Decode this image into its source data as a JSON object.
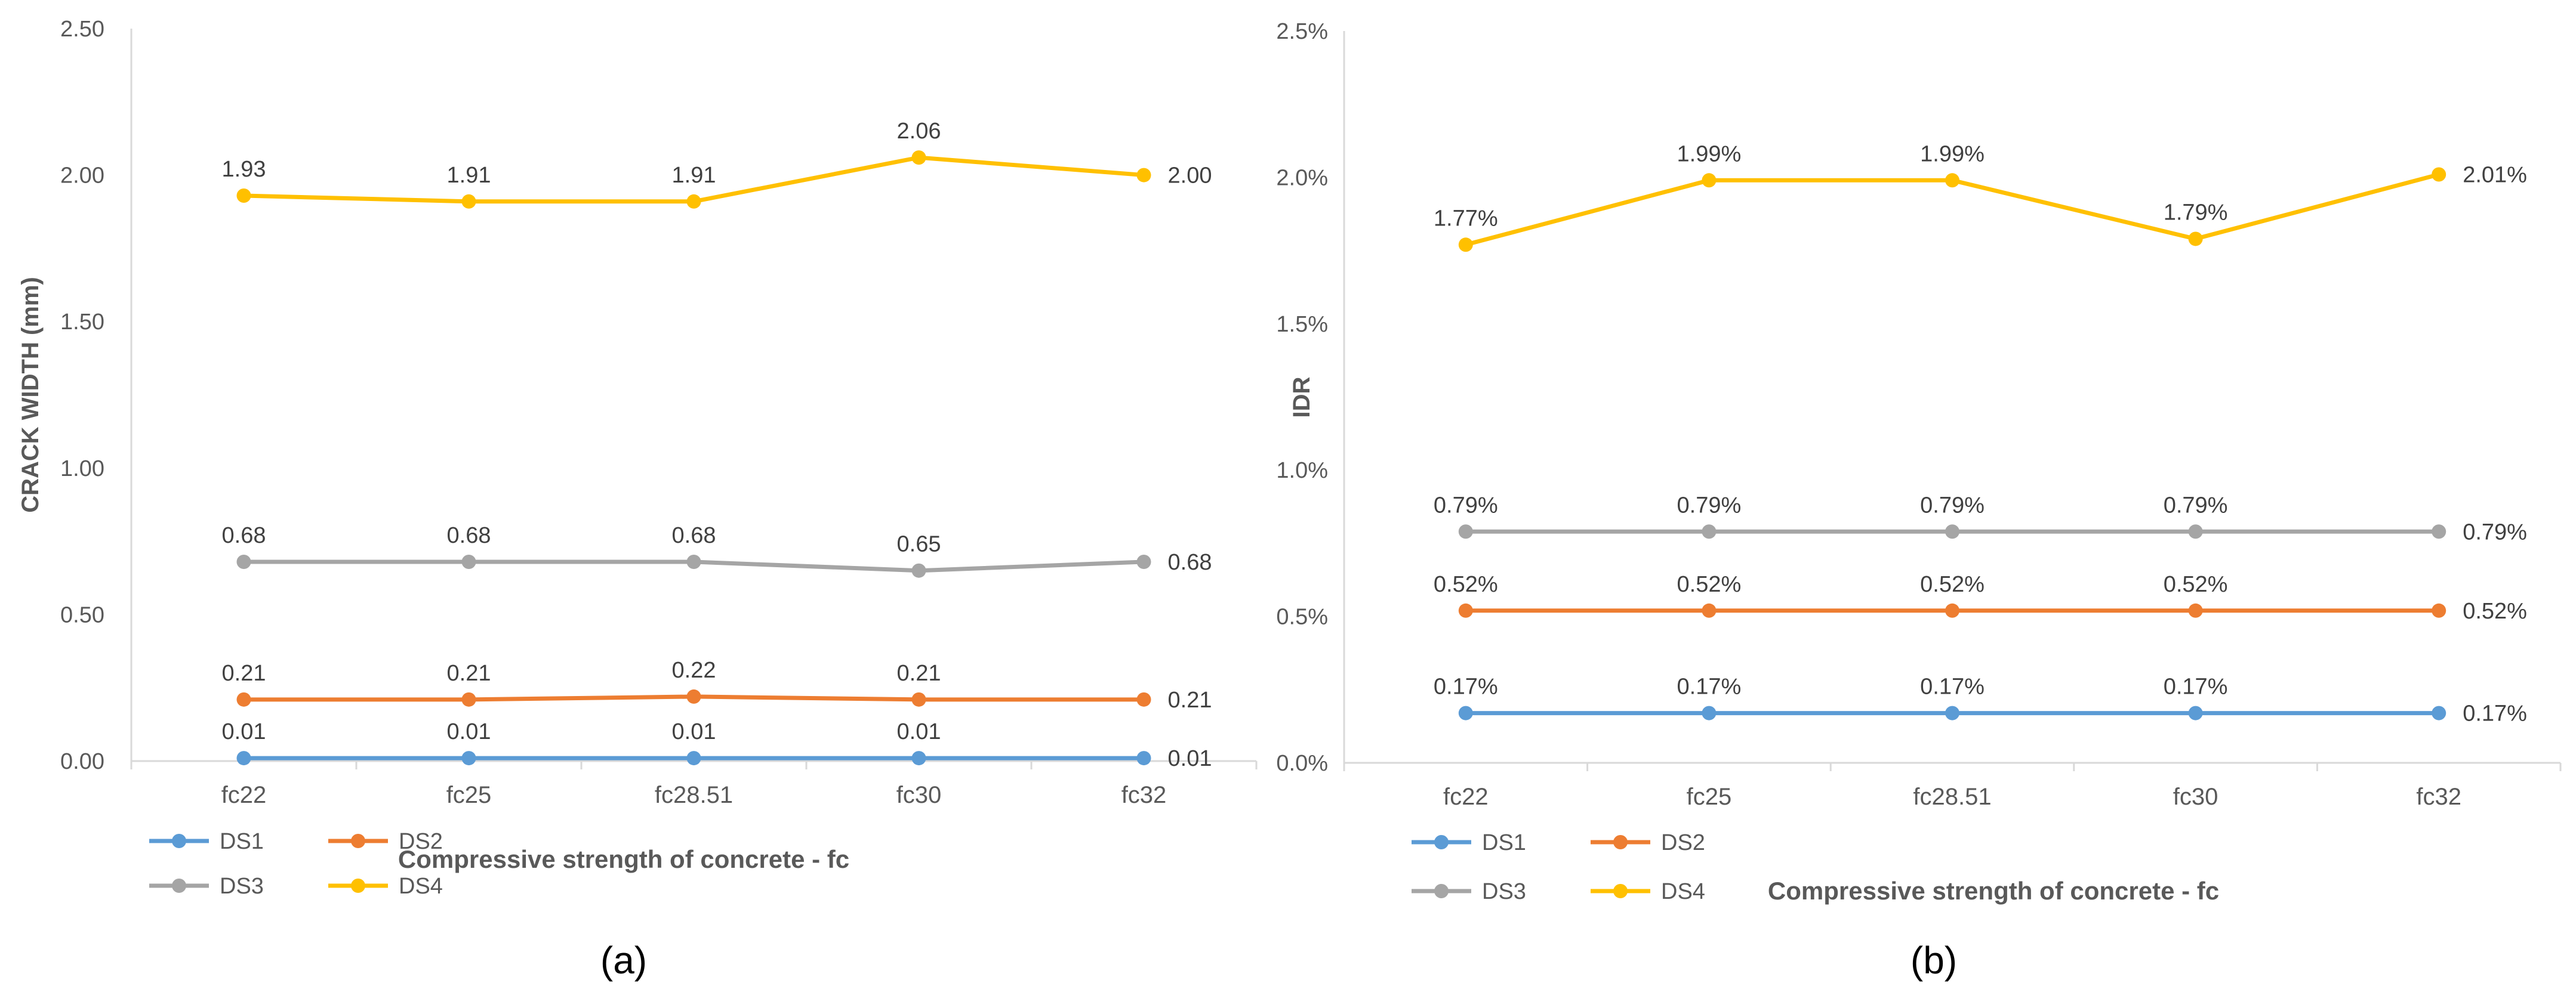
{
  "panels": [
    {
      "caption": "(a)",
      "chart_data": {
        "type": "line",
        "categories": [
          "fc22",
          "fc25",
          "fc28.51",
          "fc30",
          "fc32"
        ],
        "series": [
          {
            "name": "DS1",
            "values": [
              0.01,
              0.01,
              0.01,
              0.01,
              0.01
            ],
            "labels": [
              "0.01",
              "0.01",
              "0.01",
              "0.01",
              "0.01"
            ],
            "color": "#5B9BD5"
          },
          {
            "name": "DS2",
            "values": [
              0.21,
              0.21,
              0.22,
              0.21,
              0.21
            ],
            "labels": [
              "0.21",
              "0.21",
              "0.22",
              "0.21",
              "0.21"
            ],
            "color": "#ED7D31"
          },
          {
            "name": "DS3",
            "values": [
              0.68,
              0.68,
              0.68,
              0.65,
              0.68
            ],
            "labels": [
              "0.68",
              "0.68",
              "0.68",
              "0.65",
              "0.68"
            ],
            "color": "#A5A5A5"
          },
          {
            "name": "DS4",
            "values": [
              1.93,
              1.91,
              1.91,
              2.06,
              2.0
            ],
            "labels": [
              "1.93",
              "1.91",
              "1.91",
              "2.06",
              "2.00"
            ],
            "color": "#FFC000"
          }
        ],
        "xlabel": "Compressive strength of concrete - fc",
        "ylabel": "CRACK WIDTH (mm)",
        "ylim": [
          0,
          2.5
        ],
        "yticks": [
          0,
          0.5,
          1.0,
          1.5,
          2.0,
          2.5
        ],
        "ytick_labels": [
          "0.00",
          "0.50",
          "1.00",
          "1.50",
          "2.00",
          "2.50"
        ],
        "legend": "bottom-left",
        "grid": false
      }
    },
    {
      "caption": "(b)",
      "chart_data": {
        "type": "line",
        "categories": [
          "fc22",
          "fc25",
          "fc28.51",
          "fc30",
          "fc32"
        ],
        "series": [
          {
            "name": "DS1",
            "values": [
              0.17,
              0.17,
              0.17,
              0.17,
              0.17
            ],
            "labels": [
              "0.17%",
              "0.17%",
              "0.17%",
              "0.17%",
              "0.17%"
            ],
            "color": "#5B9BD5"
          },
          {
            "name": "DS2",
            "values": [
              0.52,
              0.52,
              0.52,
              0.52,
              0.52
            ],
            "labels": [
              "0.52%",
              "0.52%",
              "0.52%",
              "0.52%",
              "0.52%"
            ],
            "color": "#ED7D31"
          },
          {
            "name": "DS3",
            "values": [
              0.79,
              0.79,
              0.79,
              0.79,
              0.79
            ],
            "labels": [
              "0.79%",
              "0.79%",
              "0.79%",
              "0.79%",
              "0.79%"
            ],
            "color": "#A5A5A5"
          },
          {
            "name": "DS4",
            "values": [
              1.77,
              1.99,
              1.99,
              1.79,
              2.01
            ],
            "labels": [
              "1.77%",
              "1.99%",
              "1.99%",
              "1.79%",
              "2.01%"
            ],
            "color": "#FFC000"
          }
        ],
        "xlabel": "Compressive strength of concrete - fc",
        "ylabel": "IDR",
        "ylim": [
          0,
          2.5
        ],
        "yticks": [
          0,
          0.5,
          1.0,
          1.5,
          2.0,
          2.5
        ],
        "ytick_labels": [
          "0.0%",
          "0.5%",
          "1.0%",
          "1.5%",
          "2.0%",
          "2.5%"
        ],
        "legend": "bottom-left",
        "grid": false
      }
    }
  ]
}
